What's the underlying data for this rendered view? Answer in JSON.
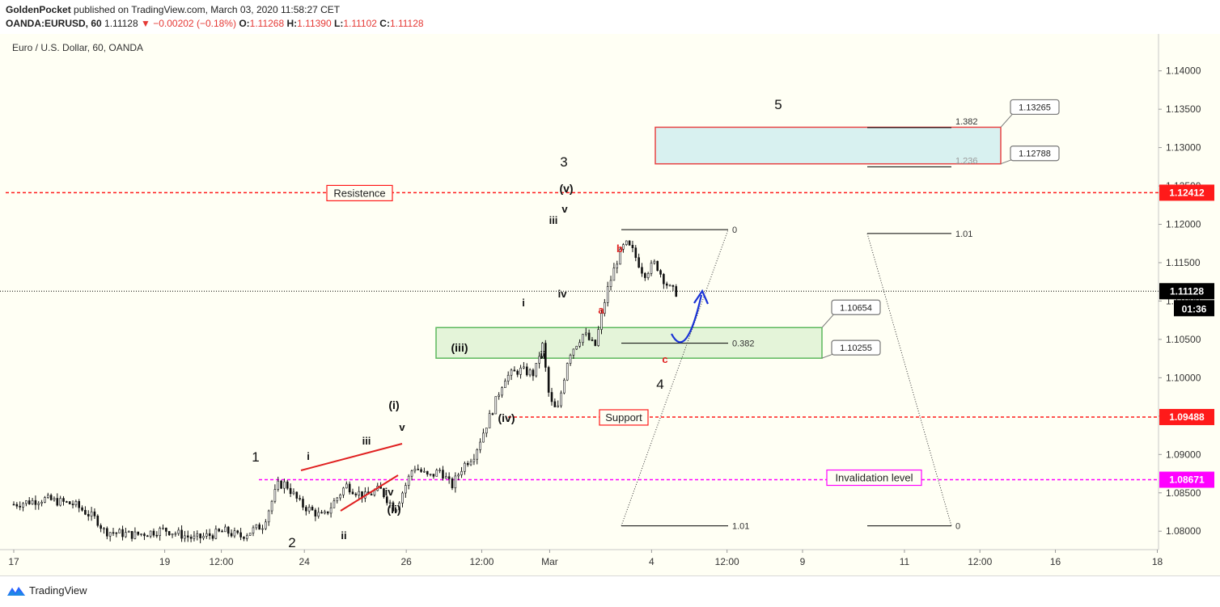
{
  "header": {
    "author": "GoldenPocket",
    "published_text": "published on TradingView.com, March 03, 2020 11:58:27 CET",
    "symbol": "OANDA:EURUSD, 60",
    "last": "1.11128",
    "change": "−0.00202 (−0.18%)",
    "o_label": "O:",
    "o": "1.11268",
    "h_label": "H:",
    "h": "1.11390",
    "l_label": "L:",
    "l": "1.11102",
    "c_label": "C:",
    "c": "1.11128"
  },
  "footer": {
    "brand": "TradingView",
    "logo_icon": "tradingview-logo-icon"
  },
  "chart_data": {
    "type": "candlestick",
    "instrument_label": "Euro / U.S. Dollar, 60, OANDA",
    "ylim": [
      1.0776,
      1.1446
    ],
    "y_ticks": [
      "1.14000",
      "1.13500",
      "1.13000",
      "1.12500",
      "1.12000",
      "1.11500",
      "1.11000",
      "1.10500",
      "1.10000",
      "1.09500",
      "1.09000",
      "1.08500",
      "1.08000"
    ],
    "y_tick_values": [
      1.14,
      1.135,
      1.13,
      1.125,
      1.12,
      1.115,
      1.11,
      1.105,
      1.1,
      1.095,
      1.09,
      1.085,
      1.08
    ],
    "x_ticks": [
      {
        "label": "17",
        "day": 0
      },
      {
        "label": "19",
        "day": 2
      },
      {
        "label": "12:00",
        "day": 2.75
      },
      {
        "label": "24",
        "day": 3.85
      },
      {
        "label": "26",
        "day": 5.2
      },
      {
        "label": "12:00",
        "day": 6.2
      },
      {
        "label": "Mar",
        "day": 7.1
      },
      {
        "label": "4",
        "day": 8.45
      },
      {
        "label": "12:00",
        "day": 9.45
      },
      {
        "label": "9",
        "day": 10.45
      },
      {
        "label": "11",
        "day": 11.8
      },
      {
        "label": "12:00",
        "day": 12.8
      },
      {
        "label": "16",
        "day": 13.8
      },
      {
        "label": "18",
        "day": 15.15
      }
    ],
    "price_path": [
      [
        0,
        1.0835
      ],
      [
        0.4,
        1.0842
      ],
      [
        0.8,
        1.0835
      ],
      [
        1.1,
        1.0815
      ],
      [
        1.2,
        1.08
      ],
      [
        1.6,
        1.0795
      ],
      [
        2.0,
        1.0802
      ],
      [
        2.4,
        1.079
      ],
      [
        2.8,
        1.08
      ],
      [
        3.0,
        1.0793
      ],
      [
        3.3,
        1.0808
      ],
      [
        3.5,
        1.086
      ],
      [
        3.6,
        1.0862
      ],
      [
        3.8,
        1.0835
      ],
      [
        4.1,
        1.0818
      ],
      [
        4.4,
        1.086
      ],
      [
        4.65,
        1.0845
      ],
      [
        4.85,
        1.0855
      ],
      [
        5.05,
        1.0828
      ],
      [
        5.3,
        1.0885
      ],
      [
        5.5,
        1.087
      ],
      [
        5.65,
        1.088
      ],
      [
        5.8,
        1.0858
      ],
      [
        5.95,
        1.0885
      ],
      [
        6.1,
        1.09
      ],
      [
        6.35,
        1.096
      ],
      [
        6.5,
        1.1
      ],
      [
        6.7,
        1.101
      ],
      [
        6.9,
        1.1005
      ],
      [
        7.0,
        1.1045
      ],
      [
        7.1,
        1.097
      ],
      [
        7.2,
        1.0955
      ],
      [
        7.35,
        1.103
      ],
      [
        7.55,
        1.1058
      ],
      [
        7.7,
        1.104
      ],
      [
        7.85,
        1.111
      ],
      [
        8.0,
        1.1155
      ],
      [
        8.1,
        1.1175
      ],
      [
        8.2,
        1.1165
      ],
      [
        8.35,
        1.1135
      ],
      [
        8.5,
        1.115
      ],
      [
        8.6,
        1.113
      ],
      [
        8.7,
        1.1115
      ],
      [
        8.8,
        1.111
      ]
    ],
    "levels": [
      {
        "name": "resistance",
        "price": 1.12412,
        "label": "1.12412",
        "color": "#ff1a1a",
        "text": "Resistence"
      },
      {
        "name": "current",
        "price": 1.11128,
        "label": "1.11128",
        "color": "#000000",
        "countdown": "01:36"
      },
      {
        "name": "support",
        "price": 1.09488,
        "label": "1.09488",
        "color": "#ff1a1a",
        "text": "Support"
      },
      {
        "name": "invalidation",
        "price": 1.08671,
        "label": "1.08671",
        "color": "#ff00ff",
        "text": "Invalidation level"
      }
    ],
    "zones": [
      {
        "name": "target-zone",
        "top": 1.13265,
        "bottom": 1.12788,
        "fill": "#d8f1f0",
        "stroke": "#e84545",
        "top_label": "1.13265",
        "bottom_label": "1.12788"
      },
      {
        "name": "wave4-zone",
        "top": 1.10654,
        "bottom": 1.10255,
        "fill": "#e4f4d9",
        "stroke": "#5cb85c",
        "top_label": "1.10654",
        "bottom_label": "1.10255"
      }
    ],
    "fib_left": {
      "levels": [
        {
          "ratio": "0",
          "price": 1.1193
        },
        {
          "ratio": "0.382",
          "price": 1.1045
        },
        {
          "ratio": "1.01",
          "price": 1.0807
        }
      ]
    },
    "fib_right": {
      "levels": [
        {
          "ratio": "1.382",
          "price": 1.1326
        },
        {
          "ratio": "1.236",
          "price": 1.1275
        },
        {
          "ratio": "1.01",
          "price": 1.1188
        },
        {
          "ratio": "0",
          "price": 1.0807
        }
      ]
    },
    "wave_labels": [
      "1",
      "2",
      "3",
      "4",
      "5",
      "i",
      "ii",
      "iii",
      "iv",
      "v",
      "(i)",
      "(ii)",
      "(iii)",
      "(iv)",
      "(v)",
      "i",
      "ii",
      "iii",
      "iv",
      "v",
      "a",
      "b",
      "c"
    ]
  }
}
